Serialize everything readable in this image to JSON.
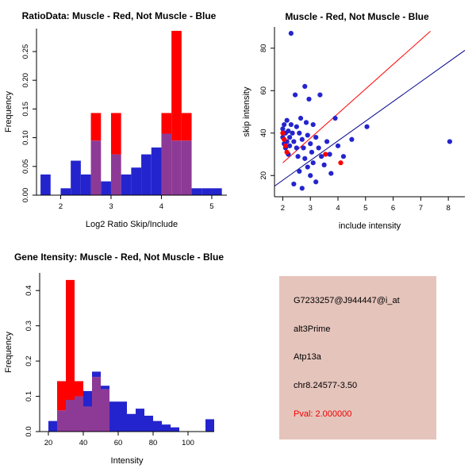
{
  "page": {
    "background": "#ffffff"
  },
  "colors": {
    "blue": "#2424CE",
    "red": "#FF0000",
    "overlap_purple": "#8D3A96",
    "navy_line": "#00008B",
    "red_line": "#FF0000",
    "axis": "#000000",
    "info_box_bg": "#E5C4BB",
    "pval_red": "#EE0000"
  },
  "info_box": {
    "bg": "#E5C4BB",
    "probe_id": "G7233257@J944447@i_at",
    "splice_type": "alt3Prime",
    "gene": "Atp13a",
    "location": "chr8.24577-3.50",
    "pval": "Pval: 2.000000",
    "pval_color": "#EE0000"
  },
  "chart_data": [
    {
      "id": "ratio-hist",
      "type": "bar",
      "title": "RatioData: Muscle - Red, Not Muscle - Blue",
      "xlabel": "Log2 Ratio Skip/Include",
      "ylabel": "Frequency",
      "xlim": [
        1.52,
        5.3
      ],
      "ylim": [
        0,
        0.29
      ],
      "xticks": [
        2,
        3,
        4,
        5
      ],
      "xtick_labels": [
        "2",
        "3",
        "4",
        "5"
      ],
      "yticks": [
        0.0,
        0.05,
        0.1,
        0.15,
        0.2,
        0.25
      ],
      "ytick_labels": [
        "0.00",
        "0.05",
        "0.10",
        "0.15",
        "0.20",
        "0.25"
      ],
      "bin_width": 0.2,
      "overlap_color": "#8D3A96",
      "series": [
        {
          "name": "Not Muscle",
          "color": "#2424CE",
          "bins": [
            [
              1.6,
              0.036
            ],
            [
              2.0,
              0.012
            ],
            [
              2.2,
              0.06
            ],
            [
              2.4,
              0.036
            ],
            [
              2.6,
              0.095
            ],
            [
              2.8,
              0.024
            ],
            [
              3.0,
              0.071
            ],
            [
              3.2,
              0.036
            ],
            [
              3.4,
              0.048
            ],
            [
              3.6,
              0.071
            ],
            [
              3.8,
              0.083
            ],
            [
              4.0,
              0.107
            ],
            [
              4.2,
              0.095
            ],
            [
              4.4,
              0.095
            ],
            [
              4.6,
              0.012
            ],
            [
              4.8,
              0.012
            ],
            [
              5.0,
              0.012
            ]
          ]
        },
        {
          "name": "Muscle",
          "color": "#FF0000",
          "bins": [
            [
              2.6,
              0.143
            ],
            [
              3.0,
              0.143
            ],
            [
              4.0,
              0.143
            ],
            [
              4.2,
              0.286
            ],
            [
              4.4,
              0.143
            ]
          ]
        }
      ],
      "layout": {
        "margins": {
          "l": 46,
          "r": 14,
          "t": 36,
          "b": 54
        },
        "grid": false,
        "legend": "none"
      }
    },
    {
      "id": "intensity-scatter",
      "type": "scatter",
      "title": "Muscle - Red, Not Muscle - Blue",
      "xlabel": "include intensity",
      "ylabel": "skip intensity",
      "xlim": [
        1.7,
        8.6
      ],
      "ylim": [
        10,
        90
      ],
      "xticks": [
        2,
        3,
        4,
        5,
        6,
        7,
        8
      ],
      "xtick_labels": [
        "2",
        "3",
        "4",
        "5",
        "6",
        "7",
        "8"
      ],
      "yticks": [
        20,
        40,
        60,
        80
      ],
      "ytick_labels": [
        "20",
        "40",
        "60",
        "80"
      ],
      "series": [
        {
          "name": "Not Muscle",
          "color": "#2424CE",
          "points": [
            [
              2.0,
              42
            ],
            [
              2.0,
              38
            ],
            [
              2.05,
              35
            ],
            [
              2.05,
              44
            ],
            [
              2.1,
              40
            ],
            [
              2.1,
              33
            ],
            [
              2.15,
              46
            ],
            [
              2.15,
              36
            ],
            [
              2.2,
              41
            ],
            [
              2.2,
              30
            ],
            [
              2.25,
              38
            ],
            [
              2.25,
              34
            ],
            [
              2.3,
              87
            ],
            [
              2.3,
              44
            ],
            [
              2.35,
              40
            ],
            [
              2.4,
              36
            ],
            [
              2.4,
              16
            ],
            [
              2.45,
              58
            ],
            [
              2.5,
              43
            ],
            [
              2.5,
              33
            ],
            [
              2.55,
              29
            ],
            [
              2.6,
              40
            ],
            [
              2.6,
              22
            ],
            [
              2.65,
              47
            ],
            [
              2.7,
              37
            ],
            [
              2.7,
              14
            ],
            [
              2.75,
              33
            ],
            [
              2.8,
              62
            ],
            [
              2.8,
              28
            ],
            [
              2.85,
              45
            ],
            [
              2.9,
              39
            ],
            [
              2.9,
              24
            ],
            [
              2.95,
              56
            ],
            [
              3.0,
              35
            ],
            [
              3.0,
              20
            ],
            [
              3.05,
              31
            ],
            [
              3.1,
              44
            ],
            [
              3.1,
              26
            ],
            [
              3.2,
              38
            ],
            [
              3.2,
              17
            ],
            [
              3.3,
              33
            ],
            [
              3.35,
              58
            ],
            [
              3.4,
              29
            ],
            [
              3.5,
              25
            ],
            [
              3.6,
              36
            ],
            [
              3.7,
              30
            ],
            [
              3.75,
              21
            ],
            [
              3.9,
              47
            ],
            [
              4.0,
              34
            ],
            [
              4.2,
              29
            ],
            [
              4.5,
              37
            ],
            [
              5.05,
              43
            ],
            [
              8.05,
              36
            ]
          ]
        },
        {
          "name": "Muscle",
          "color": "#FF0000",
          "points": [
            [
              2.0,
              40
            ],
            [
              2.05,
              37
            ],
            [
              2.1,
              34
            ],
            [
              2.15,
              31
            ],
            [
              3.55,
              30
            ],
            [
              4.1,
              26
            ]
          ]
        }
      ],
      "lines": [
        {
          "name": "muscle-fit-line",
          "color": "#FF0000",
          "from": [
            2.0,
            26
          ],
          "to": [
            7.35,
            88
          ]
        },
        {
          "name": "not-muscle-fit-line",
          "color": "#00008B",
          "from": [
            1.7,
            15
          ],
          "to": [
            8.6,
            79
          ]
        }
      ],
      "layout": {
        "margins": {
          "l": 46,
          "r": 14,
          "t": 34,
          "b": 52
        },
        "grid": false,
        "legend": "none"
      }
    },
    {
      "id": "gene-intensity-hist",
      "type": "bar",
      "title": "Gene Itensity: Muscle - Red, Not Muscle - Blue",
      "xlabel": "Intensity",
      "ylabel": "Frequency",
      "xlim": [
        15,
        115
      ],
      "ylim": [
        0,
        0.45
      ],
      "xticks": [
        20,
        40,
        60,
        80,
        100
      ],
      "xtick_labels": [
        "20",
        "40",
        "60",
        "80",
        "100"
      ],
      "yticks": [
        0.0,
        0.1,
        0.2,
        0.3,
        0.4
      ],
      "ytick_labels": [
        "0.0",
        "0.1",
        "0.2",
        "0.3",
        "0.4"
      ],
      "bin_width": 5,
      "overlap_color": "#8D3A96",
      "series": [
        {
          "name": "Not Muscle",
          "color": "#2424CE",
          "bins": [
            [
              20,
              0.03
            ],
            [
              25,
              0.06
            ],
            [
              30,
              0.09
            ],
            [
              35,
              0.1
            ],
            [
              40,
              0.115
            ],
            [
              45,
              0.17
            ],
            [
              50,
              0.13
            ],
            [
              55,
              0.085
            ],
            [
              60,
              0.085
            ],
            [
              65,
              0.05
            ],
            [
              70,
              0.065
            ],
            [
              75,
              0.045
            ],
            [
              80,
              0.03
            ],
            [
              85,
              0.02
            ],
            [
              90,
              0.012
            ],
            [
              110,
              0.035
            ]
          ]
        },
        {
          "name": "Muscle",
          "color": "#FF0000",
          "bins": [
            [
              25,
              0.143
            ],
            [
              30,
              0.43
            ],
            [
              35,
              0.143
            ],
            [
              40,
              0.071
            ],
            [
              45,
              0.155
            ],
            [
              50,
              0.12
            ]
          ]
        }
      ],
      "layout": {
        "margins": {
          "l": 50,
          "r": 30,
          "t": 44,
          "b": 56
        },
        "grid": false,
        "legend": "none"
      }
    }
  ]
}
